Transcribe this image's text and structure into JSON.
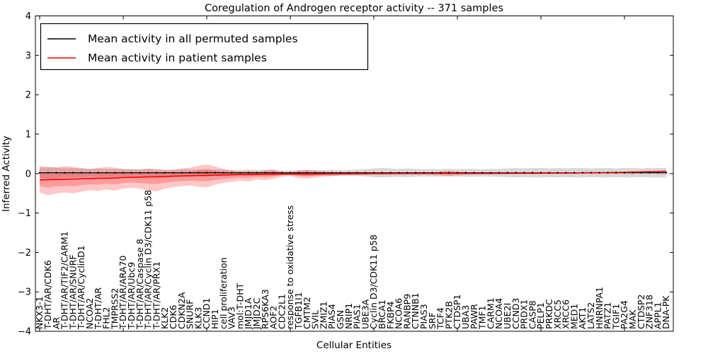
{
  "title": "Coregulation of Androgen receptor activity -- 371 samples",
  "legend": {
    "items": [
      {
        "label": "Mean activity in all permuted samples",
        "color": "#000000"
      },
      {
        "label": "Mean activity in patient samples",
        "color": "#ff0000"
      }
    ]
  },
  "axes": {
    "ylabel": "Inferred Activity",
    "xlabel": "Cellular Entities",
    "ytick_labels": [
      "4",
      "3",
      "2",
      "1",
      "0",
      "−1",
      "−2",
      "−3",
      "−4"
    ],
    "ytick_values": [
      4,
      3,
      2,
      1,
      0,
      -1,
      -2,
      -3,
      -4
    ],
    "xtick_every": 10
  },
  "colors": {
    "permuted_line": "#000000",
    "patient_line": "#ff0000",
    "permuted_band": "#999999",
    "patient_band": "#ff0000",
    "frame": "#000000"
  },
  "chart_data": {
    "type": "line",
    "title": "Coregulation of Androgen receptor activity -- 371 samples",
    "xlabel": "Cellular Entities",
    "ylabel": "Inferred Activity",
    "ylim": [
      -4,
      4
    ],
    "grid": false,
    "legend_position": "upper left",
    "categories": [
      "NKX3-1",
      "T-DHT/AR/CDK6",
      "AR",
      "T-DHT/AR/TIF2/CARM1",
      "T-DHT/AR/SNURF",
      "T-DHT/AR/CyclinD1",
      "NCOA2",
      "T-DHT/AR",
      "FHL2",
      "TMPRSS2",
      "T-DHT/AR/ARA70",
      "T-DHT/AR/Ubc9",
      "T-DHT/AR/Caspase 8",
      "T-DHT/AR/Cyclin D3/CDK11 p58",
      "T-DHT/AR/PRX1",
      "KLK2",
      "CDK6",
      "CDKN2A",
      "SNURF",
      "KLK3",
      "CCND1",
      "HIP1",
      "cell proliferation",
      "VAV3",
      "mol:T-DHT",
      "JMJD1A",
      "JMJD2C",
      "RPS6KA3",
      "AOF2",
      "CDC2L1",
      "response to oxidative stress",
      "TGFB1I1",
      "CMTM2",
      "SVIL",
      "ZMIZ1",
      "PIAS4",
      "GSN",
      "NRIP1",
      "PIAS1",
      "UBE3A",
      "Cyclin D3/CDK11 p58",
      "BRCA1",
      "FKBP4",
      "NCOA6",
      "RANBP9",
      "CTNNB1",
      "PIAS3",
      "SRF",
      "TCF4",
      "PTK2B",
      "CTDSP1",
      "UBA3",
      "PAWR",
      "TMF1",
      "CARM1",
      "NCOA4",
      "UBE2I",
      "CCND3",
      "PRDX1",
      "CASP8",
      "PELP1",
      "PRKDC",
      "XRCC5",
      "XRCC6",
      "MED1",
      "AKT1",
      "LATS2",
      "HNRNPA1",
      "PATZ1",
      "TGIF1",
      "PA2G4",
      "MAK",
      "CTDSP2",
      "ZNF318",
      "APPL1",
      "DNA-PK"
    ],
    "series": [
      {
        "name": "Mean activity in all permuted samples",
        "color": "#000000",
        "values": [
          0.02,
          0.02,
          0.02,
          0.02,
          0.02,
          0.02,
          0.02,
          0.02,
          0.02,
          0.02,
          0.02,
          0.02,
          0.02,
          0.02,
          0.02,
          0.02,
          0.02,
          0.02,
          0.02,
          0.02,
          0.02,
          0.02,
          0.02,
          0.02,
          0.02,
          0.02,
          0.02,
          0.02,
          0.02,
          0.02,
          0.02,
          0.02,
          0.02,
          0.02,
          0.02,
          0.02,
          0.02,
          0.02,
          0.02,
          0.02,
          0.02,
          0.02,
          0.02,
          0.02,
          0.02,
          0.02,
          0.02,
          0.02,
          0.02,
          0.02,
          0.02,
          0.02,
          0.02,
          0.02,
          0.02,
          0.02,
          0.02,
          0.02,
          0.02,
          0.02,
          0.02,
          0.02,
          0.02,
          0.02,
          0.02,
          0.02,
          0.02,
          0.02,
          0.02,
          0.02,
          0.02,
          0.02,
          0.02,
          0.02,
          0.02,
          0.02
        ]
      },
      {
        "name": "Mean activity in patient samples",
        "color": "#ff0000",
        "values": [
          -0.16,
          -0.155,
          -0.15,
          -0.145,
          -0.14,
          -0.13,
          -0.125,
          -0.12,
          -0.115,
          -0.11,
          -0.1,
          -0.095,
          -0.09,
          -0.085,
          -0.08,
          -0.075,
          -0.065,
          -0.06,
          -0.055,
          -0.05,
          -0.045,
          -0.04,
          -0.035,
          -0.03,
          -0.025,
          -0.02,
          -0.018,
          -0.015,
          -0.012,
          -0.01,
          -0.008,
          -0.01,
          -0.012,
          -0.01,
          -0.008,
          -0.005,
          -0.003,
          -0.002,
          0,
          0,
          0.002,
          0.003,
          0.003,
          0.004,
          0.004,
          0.005,
          0.005,
          0.006,
          0.008,
          0.01,
          0.008,
          0.006,
          0.006,
          0.007,
          0.007,
          0.008,
          0.008,
          0.009,
          0.01,
          0.01,
          0.012,
          0.012,
          0.014,
          0.015,
          0.016,
          0.018,
          0.02,
          0.022,
          0.025,
          0.028,
          0.032,
          0.036,
          0.04,
          0.045,
          0.05,
          0.058
        ]
      }
    ],
    "bands": [
      {
        "name": "permuted-confidence-band",
        "series": "Mean activity in all permuted samples",
        "color": "#999999",
        "opacity": 0.38,
        "half_width": [
          0.13,
          0.15,
          0.14,
          0.12,
          0.12,
          0.11,
          0.1,
          0.11,
          0.1,
          0.1,
          0.09,
          0.09,
          0.09,
          0.1,
          0.09,
          0.08,
          0.08,
          0.09,
          0.08,
          0.09,
          0.1,
          0.08,
          0.08,
          0.07,
          0.07,
          0.08,
          0.07,
          0.07,
          0.08,
          0.06,
          0.06,
          0.07,
          0.08,
          0.07,
          0.07,
          0.08,
          0.07,
          0.07,
          0.08,
          0.09,
          0.11,
          0.12,
          0.11,
          0.1,
          0.11,
          0.1,
          0.09,
          0.1,
          0.09,
          0.1,
          0.09,
          0.1,
          0.1,
          0.09,
          0.1,
          0.1,
          0.11,
          0.12,
          0.11,
          0.12,
          0.12,
          0.11,
          0.12,
          0.11,
          0.12,
          0.12,
          0.11,
          0.12,
          0.12,
          0.11,
          0.12,
          0.12,
          0.11,
          0.12,
          0.12,
          0.12
        ]
      },
      {
        "name": "patient-confidence-band",
        "series": "Mean activity in patient samples",
        "color": "#ff0000",
        "opacity": 0.22,
        "inner_band_factor": 0.5,
        "upper": [
          0.2,
          0.16,
          0.15,
          0.19,
          0.17,
          0.14,
          0.12,
          0.14,
          0.17,
          0.15,
          0.12,
          0.11,
          0.1,
          0.13,
          0.11,
          0.09,
          0.1,
          0.13,
          0.15,
          0.2,
          0.23,
          0.18,
          0.12,
          0.08,
          0.05,
          0.07,
          0.05,
          0.09,
          0.1,
          0.04,
          0.03,
          0.07,
          0.09,
          0.07,
          0.05,
          0.04,
          0.03,
          0.03,
          0.03,
          0.025,
          0.025,
          0.03,
          0.03,
          0.025,
          0.025,
          0.03,
          0.025,
          0.03,
          0.05,
          0.07,
          0.05,
          0.03,
          0.025,
          0.025,
          0.03,
          0.03,
          0.025,
          0.03,
          0.03,
          0.03,
          0.03,
          0.03,
          0.03,
          0.035,
          0.03,
          0.035,
          0.04,
          0.04,
          0.045,
          0.05,
          0.055,
          0.06,
          0.065,
          0.07,
          0.075,
          0.085
        ],
        "lower": [
          -0.48,
          -0.55,
          -0.5,
          -0.48,
          -0.5,
          -0.46,
          -0.42,
          -0.44,
          -0.4,
          -0.43,
          -0.38,
          -0.36,
          -0.38,
          -0.43,
          -0.45,
          -0.38,
          -0.34,
          -0.32,
          -0.3,
          -0.33,
          -0.35,
          -0.28,
          -0.24,
          -0.21,
          -0.18,
          -0.2,
          -0.15,
          -0.17,
          -0.13,
          -0.08,
          -0.06,
          -0.11,
          -0.13,
          -0.1,
          -0.08,
          -0.06,
          -0.05,
          -0.045,
          -0.04,
          -0.035,
          -0.03,
          -0.035,
          -0.03,
          -0.03,
          -0.025,
          -0.03,
          -0.025,
          -0.03,
          -0.04,
          -0.06,
          -0.04,
          -0.025,
          -0.02,
          -0.02,
          -0.02,
          -0.02,
          -0.015,
          -0.015,
          -0.015,
          -0.015,
          -0.01,
          -0.01,
          -0.01,
          -0.008,
          -0.005,
          -0.005,
          0,
          0,
          0.005,
          0.008,
          0.012,
          0.016,
          0.02,
          0.025,
          0.03,
          0.035
        ]
      }
    ]
  }
}
